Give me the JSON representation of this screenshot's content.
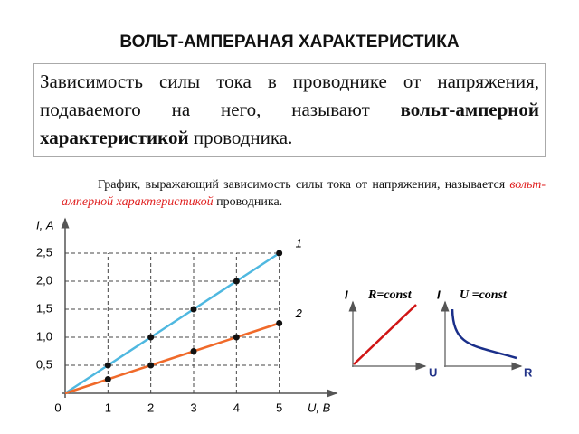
{
  "title": "ВОЛЬТ-АМПЕРАНАЯ ХАРАКТЕРИСТИКА",
  "definition": {
    "text": "Зависимость силы тока в проводнике от напряжения, подаваемого на него, называют ",
    "term": "вольт-амперной характеристикой",
    "end": " проводника."
  },
  "caption": {
    "text": "График, выражающий  зависимость силы тока от напряжения, называется ",
    "term": "вольт-амперной характеристикой",
    "end": " проводника."
  },
  "chart_data": {
    "type": "line",
    "x_label": "U, В",
    "y_label": "I, А",
    "x": [
      0,
      1,
      2,
      3,
      4,
      5
    ],
    "xlim": [
      0,
      6
    ],
    "ylim": [
      0,
      3
    ],
    "xticks": [
      0,
      1,
      2,
      3,
      4,
      5
    ],
    "yticks": [
      {
        "value": 0.5,
        "label": "0,5"
      },
      {
        "value": 1.0,
        "label": "1,0"
      },
      {
        "value": 1.5,
        "label": "1,5"
      },
      {
        "value": 2.0,
        "label": "2,0"
      },
      {
        "value": 2.5,
        "label": "2,5"
      }
    ],
    "grid": true,
    "series": [
      {
        "name": "1",
        "color": "#4fb8e0",
        "values": [
          0,
          0.5,
          1.0,
          1.5,
          2.0,
          2.5
        ]
      },
      {
        "name": "2",
        "color": "#f06a2a",
        "values": [
          0,
          0.25,
          0.5,
          0.75,
          1.0,
          1.25
        ]
      }
    ]
  },
  "insets": [
    {
      "y_label": "I",
      "note": "R=const",
      "x_label": "U"
    },
    {
      "y_label": "I",
      "note": "U =const",
      "x_label": "R"
    }
  ]
}
